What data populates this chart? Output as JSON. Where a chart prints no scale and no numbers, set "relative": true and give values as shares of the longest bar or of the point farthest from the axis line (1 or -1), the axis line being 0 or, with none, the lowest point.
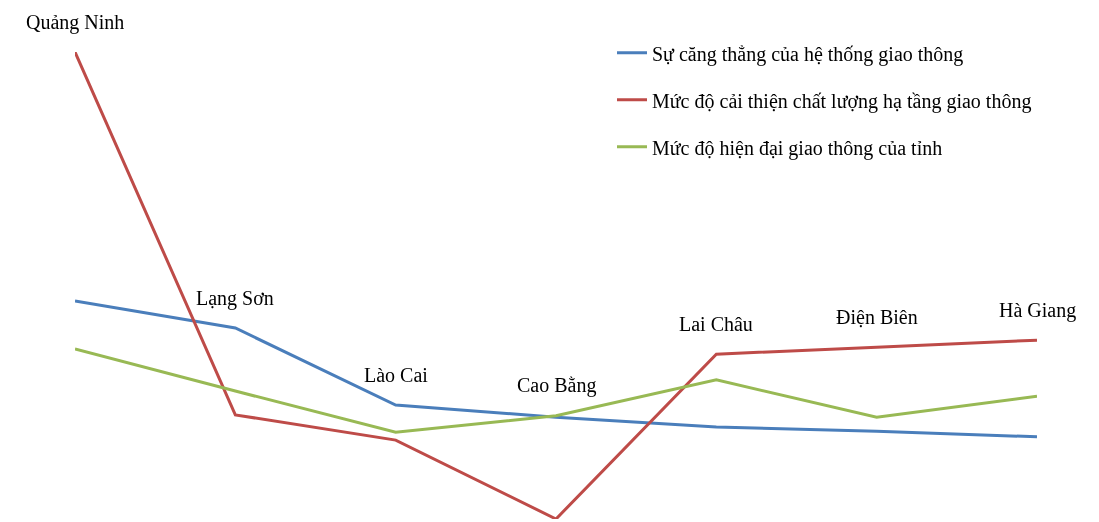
{
  "chart_data": {
    "type": "line",
    "relative": true,
    "categories": [
      "Quảng Ninh",
      "Lạng Sơn",
      "Lào Cai",
      "Cao Bằng",
      "Lai Châu",
      "Điện Biên",
      "Hà Giang"
    ],
    "series": [
      {
        "name": "Sự căng thẳng của hệ thống giao thông",
        "color": "#4a7ebb",
        "values": [
          0.467,
          0.409,
          0.244,
          0.218,
          0.197,
          0.188,
          0.176
        ]
      },
      {
        "name": "Mức độ cải thiện chất lượng hạ tầng giao thông",
        "color": "#be4b48",
        "values": [
          1,
          0.223,
          0.169,
          0,
          0.353,
          0.368,
          0.383
        ]
      },
      {
        "name": "Mức độ hiện đại giao thông của tỉnh",
        "color": "#98b954",
        "values": [
          0.364,
          0.274,
          0.186,
          0.221,
          0.298,
          0.218,
          0.263
        ]
      }
    ],
    "legend": "top right",
    "marker": "none",
    "line_style": "solid"
  }
}
